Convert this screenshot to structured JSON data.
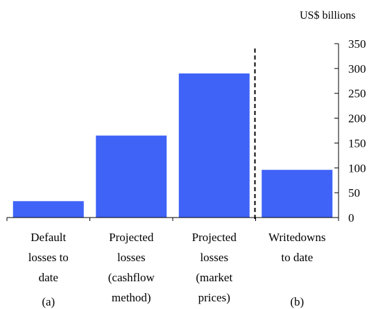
{
  "chart_data": {
    "type": "bar",
    "ylabel": "US$ billions",
    "ylim": [
      0,
      350
    ],
    "yticks": [
      0,
      50,
      100,
      150,
      200,
      250,
      300,
      350
    ],
    "grid": false,
    "legend": "none",
    "bar_color": "#3f63f7",
    "categories": [
      [
        "Default",
        "losses to",
        "date"
      ],
      [
        "Projected",
        "losses",
        "(cashflow",
        "method)"
      ],
      [
        "Projected",
        "losses",
        "(market",
        "prices)"
      ],
      [
        "Writedowns",
        "to date"
      ]
    ],
    "values": [
      33,
      165,
      290,
      96
    ],
    "group_labels": [
      {
        "label": "(a)",
        "category_index": 0
      },
      {
        "label": "(b)",
        "category_index": 3
      }
    ],
    "divider_after_category": 2
  }
}
